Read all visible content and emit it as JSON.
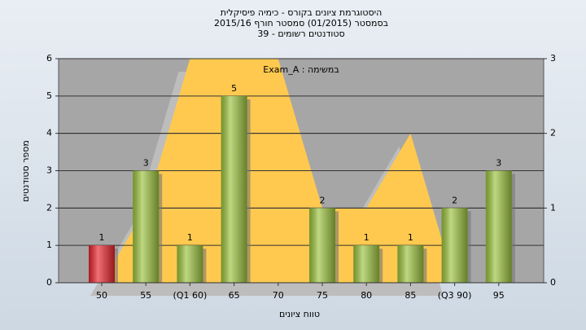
{
  "chart_data": {
    "type": "bar",
    "title": [
      "היסטוגרמת ציונים בקורס - כימיה פיסיקלית",
      "בסמסטר (01/2015) סמסטר חורף 2015/16",
      "סטודנטים רשומים - 39"
    ],
    "annotation": "במשימה : Exam_A",
    "x_label": "טווח ציונים",
    "y_label": "מספר סטודנטים",
    "categories": [
      "50",
      "55",
      "(Q1 60)",
      "65",
      "70",
      "75",
      "80",
      "85",
      "(Q3 90)",
      "95"
    ],
    "values": [
      1,
      3,
      1,
      5,
      null,
      2,
      1,
      1,
      2,
      3
    ],
    "colors": [
      "#e8232b",
      "#9cc33e",
      "#9cc33e",
      "#9cc33e",
      "#9cc33e",
      "#9cc33e",
      "#9cc33e",
      "#9cc33e",
      "#9cc33e",
      "#9cc33e"
    ],
    "area": {
      "axis": "y2",
      "color": "#ffc94f",
      "values": [
        0,
        1,
        3,
        3,
        3,
        1,
        1,
        2,
        0,
        null
      ]
    },
    "ylim": [
      0,
      6
    ],
    "yticks": [
      0,
      1,
      2,
      3,
      4,
      5,
      6
    ],
    "y2lim": [
      0,
      3
    ],
    "y2ticks": [
      0,
      1,
      2,
      3
    ],
    "grid": true
  }
}
